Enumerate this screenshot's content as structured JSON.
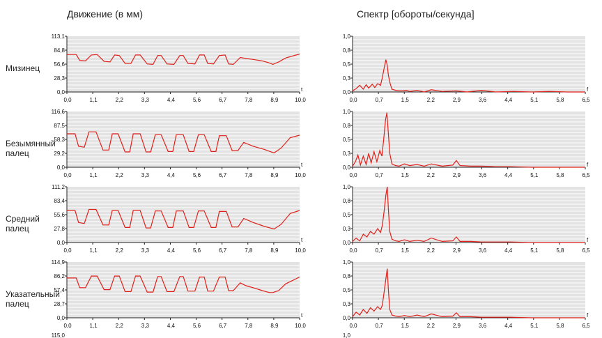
{
  "titles": {
    "motion": "Движение (в мм)",
    "spectrum": "Спектр [обороты/секунда]"
  },
  "row_labels": [
    "Мизинец",
    "Безымянный палец",
    "Средний палец",
    "Указательный палец"
  ],
  "axis_letters": {
    "motion": "t",
    "spectrum": "f"
  },
  "colors": {
    "plot_bg": "#e3e3e3",
    "grid": "#ffffff",
    "line": "#e0201a",
    "axis": "#222222"
  },
  "partial_next_row": {
    "motion_top_tick": "115,0",
    "spectrum_top_tick": "1,0"
  },
  "chart_data": [
    {
      "type": "line",
      "id": "motion-pinky",
      "x_letter": "t",
      "xlim": [
        0,
        10
      ],
      "ylim": [
        0,
        113.1
      ],
      "x_ticks": [
        "0,0",
        "1,1",
        "2,2",
        "3,3",
        "4,4",
        "5,6",
        "6,7",
        "7,8",
        "8,9",
        "10,0"
      ],
      "y_ticks": [
        "0,0",
        "28,3",
        "56,6",
        "84,8",
        "113,1"
      ],
      "series": [
        {
          "x": [
            0.0,
            0.4,
            0.55,
            0.8,
            1.05,
            1.3,
            1.6,
            1.85,
            2.05,
            2.25,
            2.5,
            2.75,
            2.95,
            3.15,
            3.45,
            3.7,
            3.9,
            4.05,
            4.3,
            4.6,
            4.85,
            5.0,
            5.2,
            5.5,
            5.7,
            5.9,
            6.05,
            6.3,
            6.55,
            6.8,
            6.95,
            7.15,
            7.45,
            7.7,
            8.0,
            8.4,
            8.7,
            8.85,
            9.1,
            9.4,
            10.0
          ],
          "y": [
            76,
            76,
            64,
            63,
            75,
            76,
            62,
            61,
            75,
            74,
            58,
            58,
            75,
            75,
            57,
            56,
            74,
            74,
            57,
            56,
            74,
            74,
            58,
            57,
            75,
            75,
            58,
            57,
            74,
            75,
            57,
            56,
            70,
            68,
            66,
            63,
            59,
            56,
            61,
            69,
            77
          ]
        }
      ]
    },
    {
      "type": "line",
      "id": "spectrum-pinky",
      "x_letter": "f",
      "xlim": [
        0,
        6.5
      ],
      "ylim": [
        0,
        1.0
      ],
      "x_ticks": [
        "0,0",
        "0,7",
        "1,5",
        "2,2",
        "2,9",
        "3,6",
        "4,4",
        "5,1",
        "5,8",
        "6,5"
      ],
      "y_ticks": [
        "0,0",
        "0,3",
        "0,5",
        "0,8",
        "1,0"
      ],
      "series": [
        {
          "x": [
            0.0,
            0.1,
            0.2,
            0.3,
            0.38,
            0.45,
            0.55,
            0.62,
            0.7,
            0.78,
            0.83,
            0.88,
            0.93,
            0.97,
            1.0,
            1.05,
            1.1,
            1.2,
            1.3,
            1.4,
            1.5,
            1.6,
            1.8,
            2.0,
            2.2,
            2.5,
            2.9,
            3.2,
            3.6,
            4.0,
            4.5,
            5.0,
            5.5,
            6.0,
            6.5
          ],
          "y": [
            0.02,
            0.06,
            0.12,
            0.05,
            0.13,
            0.07,
            0.14,
            0.08,
            0.15,
            0.12,
            0.25,
            0.42,
            0.58,
            0.48,
            0.3,
            0.15,
            0.05,
            0.03,
            0.02,
            0.02,
            0.03,
            0.01,
            0.03,
            0.0,
            0.04,
            0.01,
            0.02,
            0.0,
            0.03,
            0.0,
            0.01,
            0.0,
            0.01,
            0.0,
            0.0
          ]
        }
      ]
    },
    {
      "type": "line",
      "id": "motion-ring",
      "x_letter": "t",
      "xlim": [
        0,
        10
      ],
      "ylim": [
        0,
        116.6
      ],
      "x_ticks": [
        "0,0",
        "1,1",
        "2,2",
        "3,3",
        "4,4",
        "5,6",
        "6,7",
        "7,8",
        "8,9",
        "10,0"
      ],
      "y_ticks": [
        "0,0",
        "29,2",
        "58,3",
        "87,5",
        "116,6"
      ],
      "series": [
        {
          "x": [
            0.0,
            0.35,
            0.5,
            0.75,
            0.95,
            1.25,
            1.55,
            1.8,
            1.95,
            2.2,
            2.5,
            2.7,
            2.85,
            3.15,
            3.4,
            3.6,
            3.8,
            4.05,
            4.35,
            4.55,
            4.7,
            5.0,
            5.25,
            5.45,
            5.65,
            5.9,
            6.2,
            6.4,
            6.55,
            6.85,
            7.1,
            7.35,
            7.6,
            8.0,
            8.5,
            8.9,
            9.2,
            9.6,
            10.0
          ],
          "y": [
            70,
            70,
            44,
            42,
            74,
            74,
            36,
            36,
            70,
            70,
            32,
            32,
            70,
            70,
            32,
            32,
            68,
            68,
            33,
            33,
            68,
            68,
            33,
            33,
            68,
            68,
            33,
            33,
            66,
            66,
            35,
            35,
            52,
            44,
            37,
            30,
            40,
            62,
            67
          ]
        }
      ]
    },
    {
      "type": "line",
      "id": "spectrum-ring",
      "x_letter": "f",
      "xlim": [
        0,
        6.5
      ],
      "ylim": [
        0,
        1.0
      ],
      "x_ticks": [
        "0,0",
        "0,7",
        "1,5",
        "2,2",
        "2,9",
        "3,6",
        "4,4",
        "5,1",
        "5,8",
        "6,5"
      ],
      "y_ticks": [
        "0,0",
        "0,3",
        "0,5",
        "0,8",
        "1,0"
      ],
      "series": [
        {
          "x": [
            0.0,
            0.08,
            0.15,
            0.22,
            0.3,
            0.38,
            0.45,
            0.52,
            0.6,
            0.68,
            0.76,
            0.82,
            0.87,
            0.92,
            0.96,
            1.0,
            1.04,
            1.1,
            1.2,
            1.3,
            1.45,
            1.6,
            1.8,
            2.0,
            2.2,
            2.5,
            2.8,
            2.9,
            3.0,
            3.3,
            3.6,
            4.0,
            4.4,
            5.0,
            5.5,
            6.0,
            6.5
          ],
          "y": [
            0.02,
            0.1,
            0.22,
            0.04,
            0.2,
            0.05,
            0.25,
            0.08,
            0.28,
            0.1,
            0.3,
            0.2,
            0.5,
            0.85,
            0.98,
            0.6,
            0.25,
            0.06,
            0.03,
            0.02,
            0.06,
            0.03,
            0.05,
            0.02,
            0.06,
            0.02,
            0.04,
            0.12,
            0.03,
            0.02,
            0.02,
            0.01,
            0.01,
            0.0,
            0.0,
            0.0,
            0.0
          ]
        }
      ]
    },
    {
      "type": "line",
      "id": "motion-middle",
      "x_letter": "t",
      "xlim": [
        0,
        10
      ],
      "ylim": [
        0,
        111.2
      ],
      "x_ticks": [
        "0,0",
        "1,1",
        "2,2",
        "3,3",
        "4,4",
        "5,6",
        "6,7",
        "7,8",
        "8,9",
        "10,0"
      ],
      "y_ticks": [
        "0,0",
        "27,8",
        "55,6",
        "83,4",
        "111,2"
      ],
      "series": [
        {
          "x": [
            0.0,
            0.35,
            0.5,
            0.75,
            0.95,
            1.25,
            1.55,
            1.8,
            1.95,
            2.2,
            2.5,
            2.7,
            2.85,
            3.15,
            3.4,
            3.6,
            3.8,
            4.05,
            4.35,
            4.55,
            4.7,
            5.0,
            5.25,
            5.45,
            5.65,
            5.9,
            6.2,
            6.4,
            6.55,
            6.85,
            7.1,
            7.35,
            7.6,
            8.0,
            8.5,
            8.9,
            9.2,
            9.6,
            10.0
          ],
          "y": [
            64,
            64,
            40,
            38,
            66,
            66,
            35,
            35,
            64,
            64,
            30,
            30,
            64,
            64,
            29,
            29,
            63,
            63,
            30,
            30,
            63,
            63,
            30,
            30,
            63,
            63,
            30,
            30,
            62,
            62,
            31,
            31,
            48,
            40,
            32,
            27,
            36,
            58,
            64
          ]
        }
      ]
    },
    {
      "type": "line",
      "id": "spectrum-middle",
      "x_letter": "f",
      "xlim": [
        0,
        6.5
      ],
      "ylim": [
        0,
        1.0
      ],
      "x_ticks": [
        "0,0",
        "0,7",
        "1,5",
        "2,2",
        "2,9",
        "3,6",
        "4,4",
        "5,1",
        "5,8",
        "6,5"
      ],
      "y_ticks": [
        "0,0",
        "0,3",
        "0,5",
        "0,8",
        "1,0"
      ],
      "series": [
        {
          "x": [
            0.0,
            0.1,
            0.2,
            0.3,
            0.4,
            0.5,
            0.6,
            0.7,
            0.78,
            0.83,
            0.88,
            0.93,
            0.97,
            1.0,
            1.04,
            1.1,
            1.2,
            1.3,
            1.45,
            1.6,
            1.8,
            2.0,
            2.2,
            2.5,
            2.8,
            2.9,
            3.0,
            3.3,
            3.6,
            4.0,
            4.4,
            5.0,
            5.5,
            6.0,
            6.5
          ],
          "y": [
            0.02,
            0.08,
            0.03,
            0.15,
            0.1,
            0.2,
            0.15,
            0.25,
            0.18,
            0.3,
            0.55,
            0.85,
            1.0,
            0.6,
            0.2,
            0.06,
            0.03,
            0.02,
            0.05,
            0.02,
            0.04,
            0.02,
            0.08,
            0.02,
            0.03,
            0.1,
            0.02,
            0.02,
            0.01,
            0.01,
            0.01,
            0.0,
            0.0,
            0.0,
            0.0
          ]
        }
      ]
    },
    {
      "type": "line",
      "id": "motion-index",
      "x_letter": "t",
      "xlim": [
        0,
        10
      ],
      "ylim": [
        0,
        114.9
      ],
      "x_ticks": [
        "0,0",
        "1,1",
        "2,2",
        "3,3",
        "4,4",
        "5,6",
        "6,7",
        "7,8",
        "8,9",
        "10,0"
      ],
      "y_ticks": [
        "0,0",
        "28,7",
        "57,4",
        "86,2",
        "114,9"
      ],
      "series": [
        {
          "x": [
            0.0,
            0.4,
            0.55,
            0.8,
            1.05,
            1.3,
            1.6,
            1.85,
            2.05,
            2.25,
            2.5,
            2.75,
            2.95,
            3.15,
            3.45,
            3.7,
            3.9,
            4.05,
            4.3,
            4.6,
            4.85,
            5.0,
            5.2,
            5.5,
            5.7,
            5.9,
            6.05,
            6.3,
            6.55,
            6.8,
            6.95,
            7.15,
            7.45,
            7.7,
            8.0,
            8.4,
            8.7,
            8.85,
            9.1,
            9.4,
            10.0
          ],
          "y": [
            82,
            82,
            62,
            62,
            86,
            86,
            58,
            58,
            86,
            86,
            54,
            54,
            86,
            86,
            53,
            53,
            85,
            85,
            54,
            54,
            85,
            85,
            55,
            55,
            84,
            84,
            55,
            55,
            84,
            84,
            56,
            56,
            72,
            66,
            62,
            56,
            52,
            52,
            56,
            70,
            84
          ]
        }
      ]
    },
    {
      "type": "line",
      "id": "spectrum-index",
      "x_letter": "f",
      "xlim": [
        0,
        6.5
      ],
      "ylim": [
        0,
        1.0
      ],
      "x_ticks": [
        "0,0",
        "0,7",
        "1,5",
        "2,2",
        "2,9",
        "3,6",
        "4,4",
        "5,1",
        "5,8",
        "6,5"
      ],
      "y_ticks": [
        "0,0",
        "0,3",
        "0,5",
        "0,8",
        "1,0"
      ],
      "series": [
        {
          "x": [
            0.0,
            0.1,
            0.2,
            0.3,
            0.4,
            0.5,
            0.6,
            0.7,
            0.78,
            0.83,
            0.88,
            0.93,
            0.97,
            1.0,
            1.04,
            1.1,
            1.2,
            1.3,
            1.45,
            1.6,
            1.8,
            2.0,
            2.2,
            2.5,
            2.8,
            2.9,
            3.0,
            3.3,
            3.6,
            4.0,
            4.4,
            5.0,
            5.5,
            6.0,
            6.5
          ],
          "y": [
            0.02,
            0.1,
            0.05,
            0.15,
            0.08,
            0.18,
            0.12,
            0.2,
            0.15,
            0.22,
            0.45,
            0.7,
            0.88,
            0.5,
            0.15,
            0.05,
            0.03,
            0.02,
            0.04,
            0.02,
            0.05,
            0.02,
            0.07,
            0.02,
            0.03,
            0.09,
            0.02,
            0.02,
            0.01,
            0.01,
            0.01,
            0.0,
            0.0,
            0.0,
            0.0
          ]
        }
      ]
    }
  ]
}
